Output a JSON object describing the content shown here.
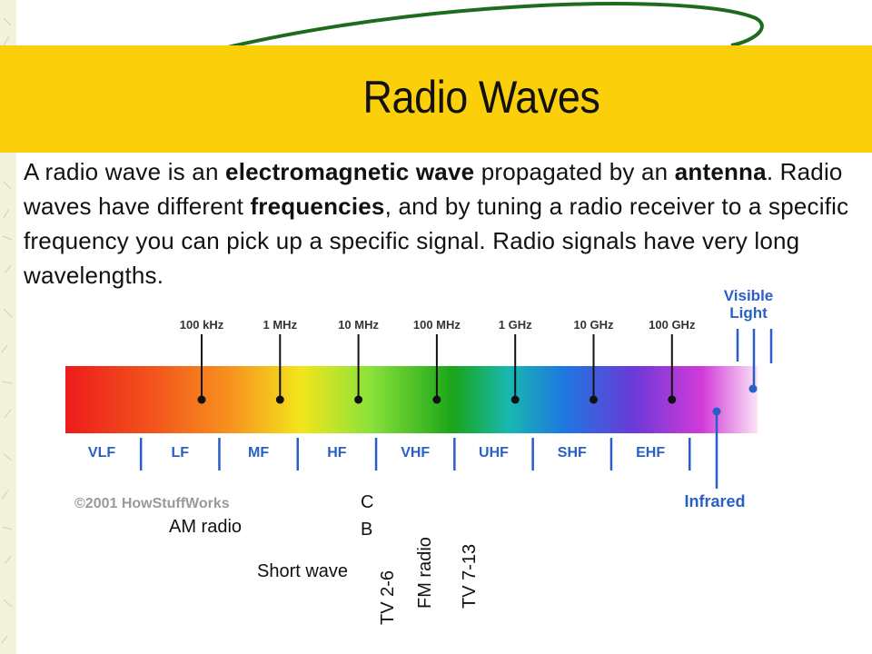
{
  "slide": {
    "title": "Radio Waves",
    "body": {
      "p1": "A radio wave is an ",
      "b1": "electromagnetic wave",
      "p2": " propagated by an ",
      "b2": "antenna",
      "p3": ". Radio waves have different ",
      "b3": "frequencies",
      "p4": ", and by tuning a radio receiver to a specific frequency you can pick up a specific signal. Radio signals have very long wavelengths."
    }
  },
  "spectrum": {
    "frequencies": [
      "100 kHz",
      "1 MHz",
      "10 MHz",
      "100 MHz",
      "1 GHz",
      "10 GHz",
      "100 GHz"
    ],
    "bands": [
      "VLF",
      "LF",
      "MF",
      "HF",
      "VHF",
      "UHF",
      "SHF",
      "EHF"
    ],
    "visible_label_1": "Visible",
    "visible_label_2": "Light",
    "infrared_label": "Infrared",
    "copyright": "©2001 HowStuffWorks"
  },
  "annotations": {
    "am_radio": "AM radio",
    "short_wave": "Short wave",
    "cb_c": "C",
    "cb_b": "B",
    "tv_2_6": "TV 2-6",
    "fm_radio": "FM radio",
    "tv_7_13": "TV 7-13"
  },
  "colors": {
    "title_band": "#fbcf0a",
    "label_blue": "#2a5fc8",
    "swoosh_green": "#1d6b1d"
  }
}
